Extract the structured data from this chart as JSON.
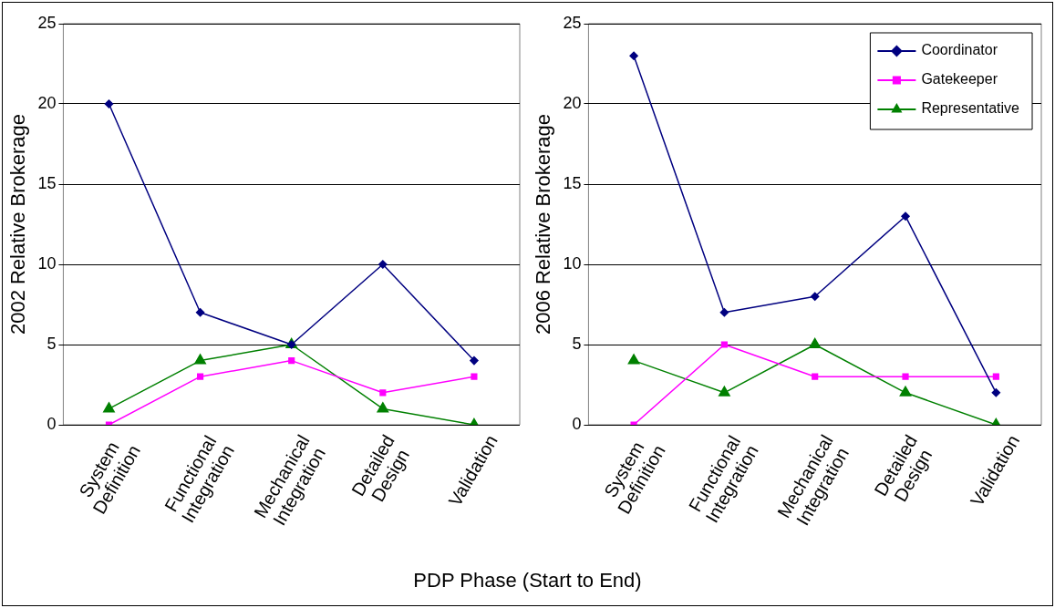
{
  "chart_data": [
    {
      "type": "line",
      "ylabel": "2002 Relative Brokerage",
      "xlabel": "PDP Phase (Start to End)",
      "categories": [
        "System Definition",
        "Functional Integration",
        "Mechanical Integration",
        "Detailed Design",
        "Validation"
      ],
      "ylim": [
        0,
        25
      ],
      "yticks": [
        0,
        5,
        10,
        15,
        20,
        25
      ],
      "grid": "y",
      "legend": false,
      "series": [
        {
          "color": "#000080",
          "marker": "diamond",
          "values": [
            20,
            7,
            5,
            10,
            4
          ]
        },
        {
          "color": "#ff00ff",
          "marker": "square",
          "values": [
            0,
            3,
            4,
            2,
            3
          ]
        },
        {
          "color": "#008000",
          "marker": "triangle",
          "values": [
            1,
            4,
            5,
            1,
            0
          ]
        }
      ]
    },
    {
      "type": "line",
      "ylabel": "2006 Relative Brokerage",
      "categories": [
        "System Definition",
        "Functional Integration",
        "Mechanical Integration",
        "Detailed Design",
        "Validation"
      ],
      "ylim": [
        0,
        25
      ],
      "yticks": [
        0,
        5,
        10,
        15,
        20,
        25
      ],
      "grid": "y",
      "legend": "top right",
      "series": [
        {
          "name": "Coordinator",
          "color": "#000080",
          "marker": "diamond",
          "values": [
            23,
            7,
            8,
            13,
            2
          ]
        },
        {
          "name": "Gatekeeper",
          "color": "#ff00ff",
          "marker": "square",
          "values": [
            0,
            5,
            3,
            3,
            3
          ]
        },
        {
          "name": "Representative",
          "color": "#008000",
          "marker": "triangle",
          "values": [
            4,
            2,
            5,
            2,
            0
          ]
        }
      ]
    }
  ]
}
